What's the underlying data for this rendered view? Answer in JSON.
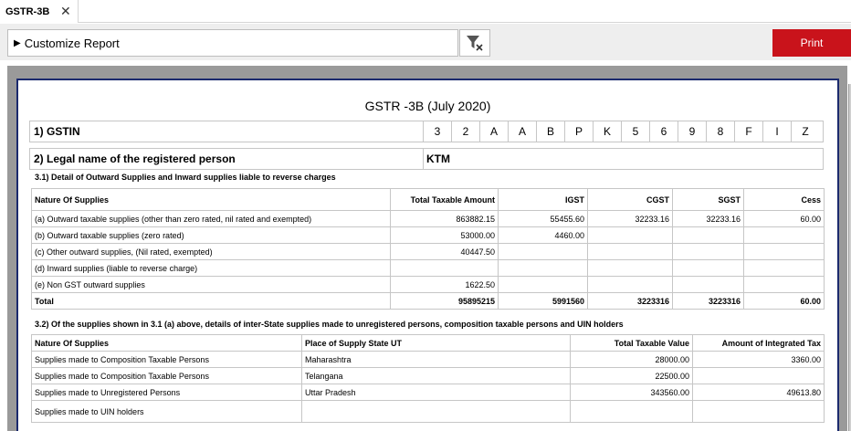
{
  "tab": {
    "label": "GSTR-3B",
    "close_glyph": "✕"
  },
  "toolbar": {
    "customize_label": "Customize Report",
    "customize_icon": "triangle-right-icon",
    "filter_icon": "filter-clear-icon",
    "print_label": "Print",
    "print_color": "#c9131b"
  },
  "report": {
    "title": "GSTR -3B (July 2020)",
    "gstin_label": "1) GSTIN",
    "gstin_chars": [
      "3",
      "2",
      "A",
      "A",
      "B",
      "P",
      "K",
      "5",
      "6",
      "9",
      "8",
      "F",
      "I",
      "Z"
    ],
    "legal_name_label": "2) Legal name of the registered person",
    "legal_name_value": "KTM",
    "section31": {
      "title": "3.1) Detail of Outward Supplies and Inward supplies liable to reverse charges",
      "headers": [
        "Nature Of Supplies",
        "Total Taxable Amount",
        "IGST",
        "CGST",
        "SGST",
        "Cess"
      ],
      "rows": [
        [
          "(a) Outward taxable supplies (other than zero rated, nil rated and exempted)",
          "863882.15",
          "55455.60",
          "32233.16",
          "32233.16",
          "60.00"
        ],
        [
          "(b) Outward taxable supplies (zero rated)",
          "53000.00",
          "4460.00",
          "",
          "",
          ""
        ],
        [
          "(c) Other outward supplies, (Nil rated, exempted)",
          "40447.50",
          "",
          "",
          "",
          ""
        ],
        [
          "(d) Inward supplies (liable to reverse charge)",
          "",
          "",
          "",
          "",
          ""
        ],
        [
          "(e) Non GST outward supplies",
          "1622.50",
          "",
          "",
          "",
          ""
        ]
      ],
      "total": [
        "Total",
        "95895215",
        "5991560",
        "3223316",
        "3223316",
        "60.00"
      ]
    },
    "section32": {
      "title": "3.2) Of the supplies shown in 3.1 (a) above, details of inter-State supplies made to unregistered persons, composition taxable persons and UIN holders",
      "headers": [
        "Nature Of Supplies",
        "Place of Supply State UT",
        "Total Taxable Value",
        "Amount of Integrated Tax"
      ],
      "rows": [
        [
          "Supplies made to Composition Taxable Persons",
          "Maharashtra",
          "28000.00",
          "3360.00"
        ],
        [
          "Supplies made to Composition Taxable Persons",
          "Telangana",
          "22500.00",
          ""
        ],
        [
          "Supplies made to Unregistered Persons",
          "Uttar Pradesh",
          "343560.00",
          "49613.80"
        ],
        [
          "Supplies made to UIN holders",
          "",
          "",
          ""
        ]
      ]
    }
  }
}
